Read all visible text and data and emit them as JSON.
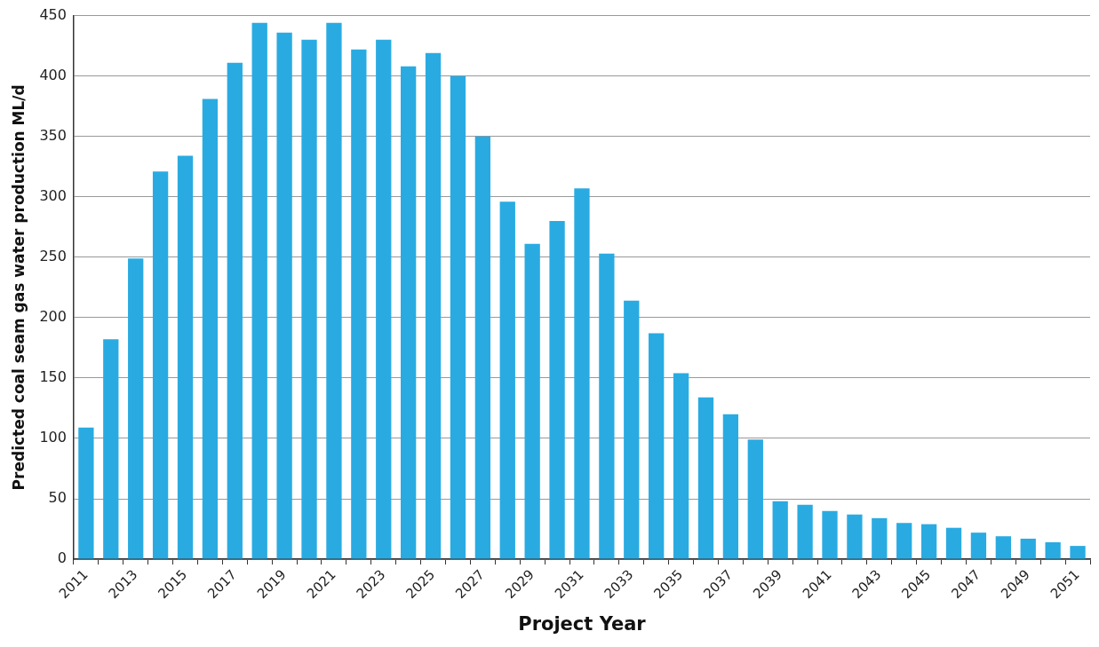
{
  "chart_data": {
    "type": "bar",
    "xlabel": "Project Year",
    "ylabel": "Predicted coal seam gas water production ML/d",
    "categories": [
      "2011",
      null,
      "2013",
      null,
      "2015",
      null,
      "2017",
      null,
      "2019",
      null,
      "2021",
      null,
      "2023",
      null,
      "2025",
      null,
      "2027",
      null,
      "2029",
      null,
      "2031",
      null,
      "2033",
      null,
      "2035",
      null,
      "2037",
      null,
      "2039",
      null,
      "2041",
      null,
      "2043",
      null,
      "2045",
      null,
      "2047",
      null,
      "2049",
      null,
      "2051"
    ],
    "values": [
      109,
      182,
      249,
      321,
      334,
      381,
      411,
      444,
      436,
      430,
      444,
      422,
      430,
      408,
      419,
      400,
      350,
      296,
      261,
      280,
      307,
      253,
      214,
      187,
      154,
      134,
      120,
      99,
      48,
      45,
      40,
      37,
      34,
      30,
      29,
      26,
      22,
      19,
      17,
      14,
      11
    ],
    "color": "#29abe2",
    "ylim": [
      0,
      450
    ],
    "yticks": [
      0,
      50,
      100,
      150,
      200,
      250,
      300,
      350,
      400,
      450
    ],
    "grid": "y",
    "legend": false
  }
}
